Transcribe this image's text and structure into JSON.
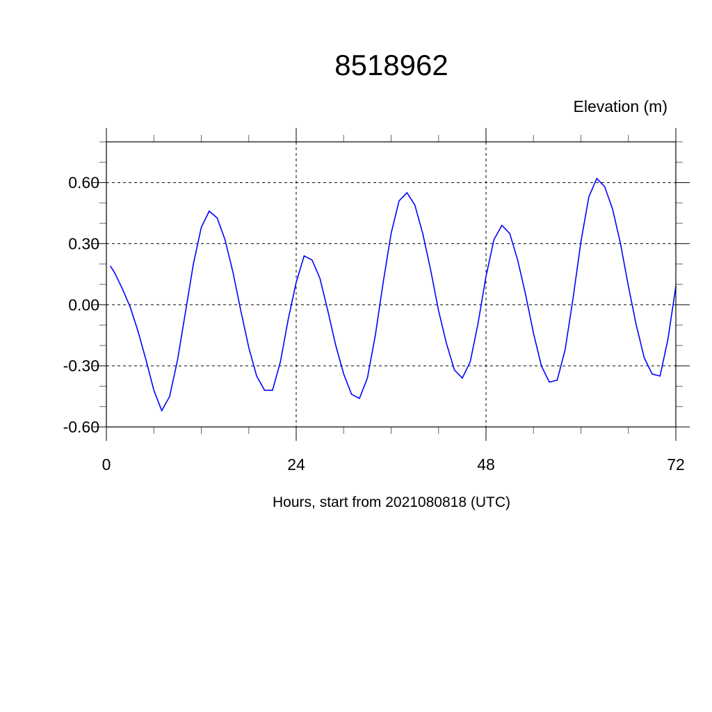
{
  "chart_data": {
    "type": "line",
    "title": "8518962",
    "ylabel": "Elevation (m)",
    "xlabel": "Hours, start from 2021080818 (UTC)",
    "xlim": [
      0,
      72
    ],
    "ylim": [
      -0.6,
      0.8
    ],
    "xticks": [
      0,
      24,
      48,
      72
    ],
    "xtick_labels": [
      "0",
      "24",
      "48",
      "72"
    ],
    "xminor_step": 6,
    "yticks": [
      -0.6,
      -0.3,
      0.0,
      0.3,
      0.6
    ],
    "ytick_labels": [
      "-0.60",
      "-0.30",
      "0.00",
      "0.30",
      "0.60"
    ],
    "yminor_step": 0.1,
    "grid": true,
    "line_color": "#0000ff",
    "x": [
      0.5,
      1,
      2,
      3,
      4,
      5,
      6,
      7,
      8,
      9,
      10,
      11,
      12,
      13,
      14,
      15,
      16,
      17,
      18,
      19,
      20,
      21,
      22,
      23,
      24,
      25,
      26,
      27,
      28,
      29,
      30,
      31,
      32,
      33,
      34,
      35,
      36,
      37,
      38,
      39,
      40,
      41,
      42,
      43,
      44,
      45,
      46,
      47,
      48,
      49,
      50,
      51,
      52,
      53,
      54,
      55,
      56,
      57,
      58,
      59,
      60,
      61,
      62,
      63,
      64,
      65,
      66,
      67,
      68,
      69,
      70,
      71,
      72
    ],
    "y": [
      0.19,
      0.16,
      0.08,
      -0.01,
      -0.13,
      -0.27,
      -0.42,
      -0.52,
      -0.45,
      -0.27,
      -0.035,
      0.2,
      0.38,
      0.46,
      0.426,
      0.32,
      0.16,
      -0.03,
      -0.21,
      -0.35,
      -0.42,
      -0.42,
      -0.28,
      -0.07,
      0.11,
      0.24,
      0.22,
      0.13,
      -0.03,
      -0.2,
      -0.34,
      -0.44,
      -0.46,
      -0.36,
      -0.15,
      0.11,
      0.35,
      0.51,
      0.55,
      0.49,
      0.35,
      0.17,
      -0.03,
      -0.19,
      -0.32,
      -0.36,
      -0.28,
      -0.09,
      0.14,
      0.32,
      0.39,
      0.35,
      0.22,
      0.05,
      -0.14,
      -0.3,
      -0.38,
      -0.37,
      -0.22,
      0.03,
      0.31,
      0.53,
      0.62,
      0.58,
      0.47,
      0.3,
      0.09,
      -0.1,
      -0.26,
      -0.34,
      -0.35,
      -0.17,
      0.09
    ]
  }
}
